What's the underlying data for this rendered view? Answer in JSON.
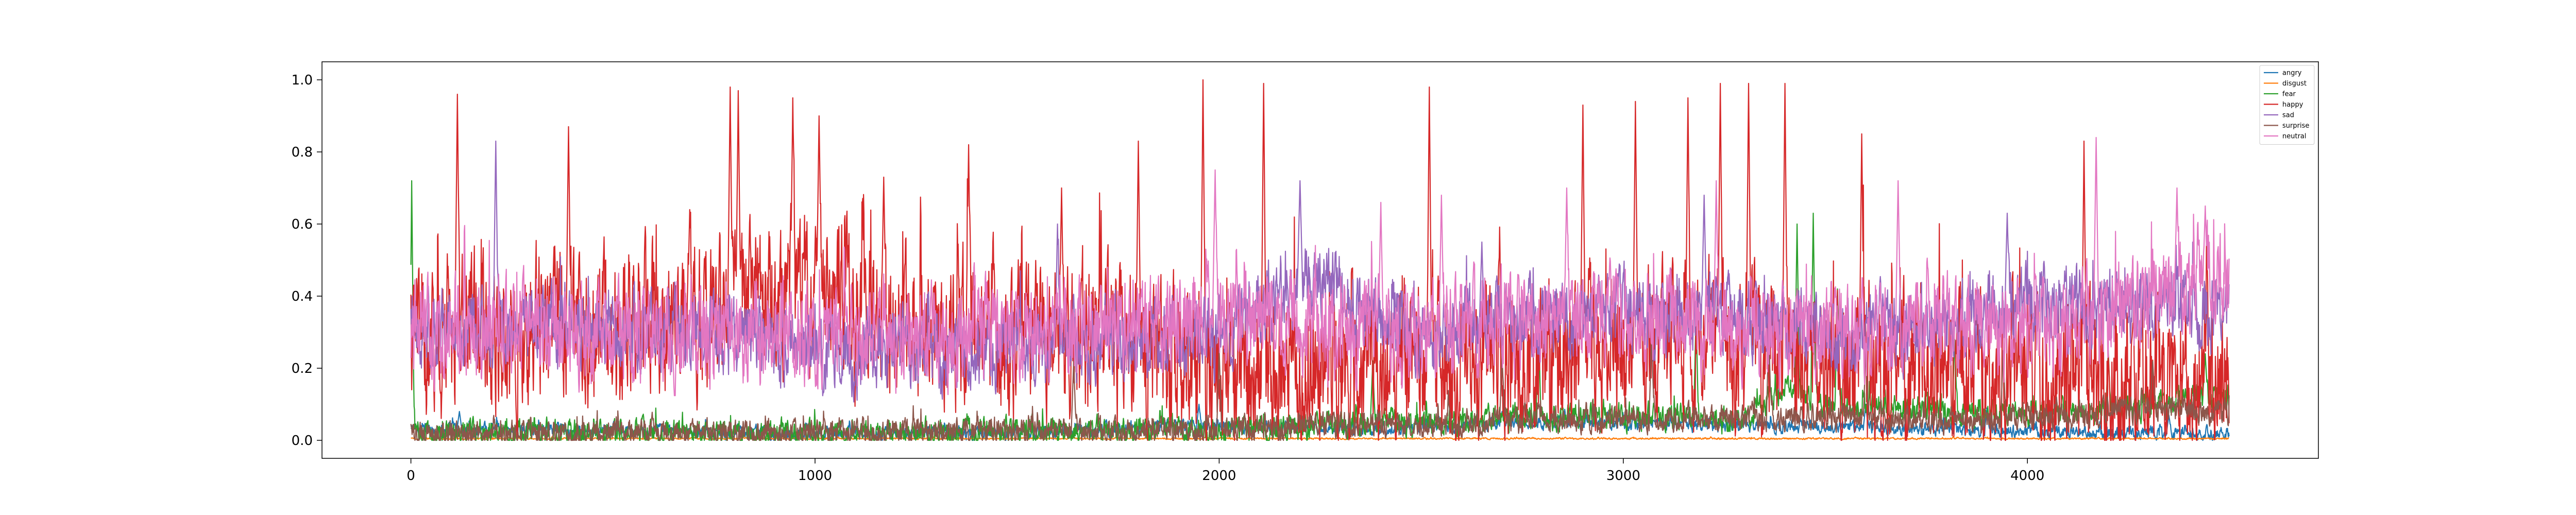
{
  "chart_data": {
    "type": "line",
    "title": "",
    "xlabel": "",
    "ylabel": "",
    "xlim": [
      -220,
      4720
    ],
    "ylim": [
      -0.05,
      1.05
    ],
    "n_points": 4500,
    "x_ticks": [
      0,
      1000,
      2000,
      3000,
      4000
    ],
    "x_tick_labels": [
      "0",
      "1000",
      "2000",
      "3000",
      "4000"
    ],
    "y_ticks": [
      0.0,
      0.2,
      0.4,
      0.6,
      0.8,
      1.0
    ],
    "y_tick_labels": [
      "0.0",
      "0.2",
      "0.4",
      "0.6",
      "0.8",
      "1.0"
    ],
    "grid": false,
    "legend_position": "top-right",
    "series": [
      {
        "name": "angry",
        "color": "#1f77b4",
        "profile": [
          [
            0,
            0.03
          ],
          [
            400,
            0.03
          ],
          [
            900,
            0.02
          ],
          [
            1500,
            0.02
          ],
          [
            1900,
            0.04
          ],
          [
            2300,
            0.03
          ],
          [
            2800,
            0.05
          ],
          [
            3300,
            0.04
          ],
          [
            3800,
            0.03
          ],
          [
            4200,
            0.02
          ],
          [
            4499,
            0.02
          ]
        ],
        "amplitude": 0.03,
        "spikes": [
          [
            120,
            0.08
          ],
          [
            1950,
            0.1
          ],
          [
            2700,
            0.08
          ],
          [
            3150,
            0.08
          ],
          [
            3600,
            0.1
          ],
          [
            3900,
            0.09
          ],
          [
            4350,
            0.07
          ]
        ]
      },
      {
        "name": "disgust",
        "color": "#ff7f0e",
        "profile": [
          [
            0,
            0.005
          ],
          [
            4499,
            0.005
          ]
        ],
        "amplitude": 0.004,
        "spikes": []
      },
      {
        "name": "fear",
        "color": "#2ca02c",
        "profile": [
          [
            0,
            0.02
          ],
          [
            1000,
            0.02
          ],
          [
            2000,
            0.03
          ],
          [
            2700,
            0.06
          ],
          [
            3000,
            0.07
          ],
          [
            3300,
            0.05
          ],
          [
            3400,
            0.15
          ],
          [
            3500,
            0.1
          ],
          [
            3800,
            0.08
          ],
          [
            4200,
            0.08
          ],
          [
            4400,
            0.12
          ],
          [
            4499,
            0.12
          ]
        ],
        "amplitude": 0.06,
        "spikes": [
          [
            2,
            0.72
          ],
          [
            2380,
            0.22
          ],
          [
            2790,
            0.35
          ],
          [
            3180,
            0.35
          ],
          [
            3430,
            0.6
          ],
          [
            3470,
            0.63
          ],
          [
            3530,
            0.42
          ],
          [
            3820,
            0.28
          ],
          [
            4200,
            0.25
          ],
          [
            4440,
            0.24
          ]
        ]
      },
      {
        "name": "happy",
        "color": "#d62728",
        "profile": [
          [
            0,
            0.3
          ],
          [
            400,
            0.3
          ],
          [
            800,
            0.35
          ],
          [
            1000,
            0.42
          ],
          [
            1200,
            0.32
          ],
          [
            1500,
            0.3
          ],
          [
            1800,
            0.25
          ],
          [
            2000,
            0.2
          ],
          [
            2300,
            0.2
          ],
          [
            2600,
            0.2
          ],
          [
            3000,
            0.25
          ],
          [
            3300,
            0.25
          ],
          [
            3600,
            0.2
          ],
          [
            3900,
            0.2
          ],
          [
            4200,
            0.15
          ],
          [
            4499,
            0.2
          ]
        ],
        "amplitude": 0.35,
        "spikes": [
          [
            115,
            0.96
          ],
          [
            390,
            0.87
          ],
          [
            690,
            0.64
          ],
          [
            790,
            0.98
          ],
          [
            810,
            0.97
          ],
          [
            945,
            0.95
          ],
          [
            1010,
            0.9
          ],
          [
            1170,
            0.73
          ],
          [
            1380,
            0.82
          ],
          [
            1610,
            0.7
          ],
          [
            1800,
            0.83
          ],
          [
            1960,
            1.0
          ],
          [
            2110,
            0.99
          ],
          [
            2520,
            0.98
          ],
          [
            2900,
            0.93
          ],
          [
            3030,
            0.94
          ],
          [
            3160,
            0.95
          ],
          [
            3240,
            0.99
          ],
          [
            3310,
            0.99
          ],
          [
            3400,
            0.99
          ],
          [
            3590,
            0.85
          ],
          [
            4140,
            0.83
          ]
        ]
      },
      {
        "name": "sad",
        "color": "#9467bd",
        "profile": [
          [
            0,
            0.3
          ],
          [
            300,
            0.32
          ],
          [
            700,
            0.3
          ],
          [
            1000,
            0.25
          ],
          [
            1500,
            0.25
          ],
          [
            2000,
            0.3
          ],
          [
            2200,
            0.45
          ],
          [
            2500,
            0.3
          ],
          [
            2900,
            0.35
          ],
          [
            3200,
            0.35
          ],
          [
            3600,
            0.3
          ],
          [
            3900,
            0.35
          ],
          [
            4200,
            0.38
          ],
          [
            4499,
            0.35
          ]
        ],
        "amplitude": 0.18,
        "spikes": [
          [
            210,
            0.83
          ],
          [
            1600,
            0.6
          ],
          [
            2200,
            0.72
          ],
          [
            2650,
            0.55
          ],
          [
            3200,
            0.68
          ],
          [
            3950,
            0.63
          ],
          [
            4340,
            0.48
          ]
        ]
      },
      {
        "name": "surprise",
        "color": "#8c564b",
        "profile": [
          [
            0,
            0.02
          ],
          [
            1000,
            0.02
          ],
          [
            2000,
            0.03
          ],
          [
            2600,
            0.05
          ],
          [
            3000,
            0.06
          ],
          [
            3500,
            0.06
          ],
          [
            4000,
            0.06
          ],
          [
            4300,
            0.09
          ],
          [
            4499,
            0.08
          ]
        ],
        "amplitude": 0.06,
        "spikes": [
          [
            1640,
            0.22
          ],
          [
            2000,
            0.25
          ],
          [
            2700,
            0.24
          ],
          [
            3070,
            0.3
          ],
          [
            3360,
            0.3
          ],
          [
            3600,
            0.25
          ],
          [
            3940,
            0.25
          ],
          [
            4310,
            0.22
          ]
        ]
      },
      {
        "name": "neutral",
        "color": "#e377c2",
        "profile": [
          [
            0,
            0.32
          ],
          [
            400,
            0.3
          ],
          [
            800,
            0.3
          ],
          [
            1200,
            0.28
          ],
          [
            1600,
            0.3
          ],
          [
            2000,
            0.35
          ],
          [
            2300,
            0.3
          ],
          [
            2700,
            0.32
          ],
          [
            3000,
            0.35
          ],
          [
            3400,
            0.3
          ],
          [
            3700,
            0.32
          ],
          [
            4000,
            0.3
          ],
          [
            4300,
            0.38
          ],
          [
            4499,
            0.45
          ]
        ],
        "amplitude": 0.22,
        "spikes": [
          [
            1990,
            0.75
          ],
          [
            2400,
            0.66
          ],
          [
            2550,
            0.68
          ],
          [
            2860,
            0.7
          ],
          [
            3230,
            0.72
          ],
          [
            3680,
            0.72
          ],
          [
            4170,
            0.84
          ],
          [
            4370,
            0.7
          ],
          [
            4440,
            0.65
          ]
        ]
      }
    ]
  }
}
